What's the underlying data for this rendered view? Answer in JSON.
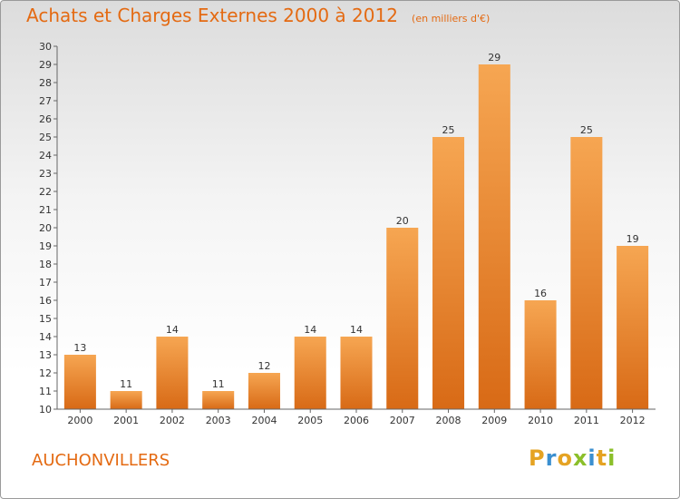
{
  "chart_data": {
    "type": "bar",
    "title": "Achats et Charges Externes 2000 à 2012",
    "subtitle": "(en milliers d'€)",
    "categories": [
      "2000",
      "2001",
      "2002",
      "2003",
      "2004",
      "2005",
      "2006",
      "2007",
      "2008",
      "2009",
      "2010",
      "2011",
      "2012"
    ],
    "values": [
      13,
      11,
      14,
      11,
      12,
      14,
      14,
      20,
      25,
      29,
      16,
      25,
      19
    ],
    "xlabel": "",
    "ylabel": "",
    "ylim": [
      10,
      30
    ],
    "yticks": [
      10,
      11,
      12,
      13,
      14,
      15,
      16,
      17,
      18,
      19,
      20,
      21,
      22,
      23,
      24,
      25,
      26,
      27,
      28,
      29,
      30
    ],
    "grid": false,
    "legend": null,
    "bar_color": "#f09a3e"
  },
  "place_name": "AUCHONVILLERS",
  "logo": {
    "text": "Proxiti"
  },
  "colors": {
    "title": "#e46a12",
    "bar_top": "#f6a652",
    "bar_bottom": "#d86a16",
    "axis": "#666666"
  }
}
